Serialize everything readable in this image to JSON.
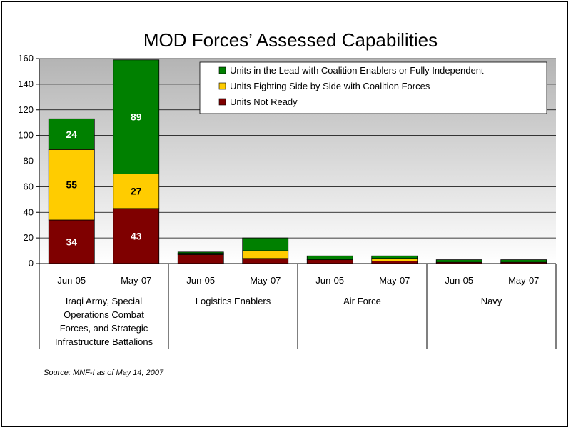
{
  "chart_data": {
    "type": "bar",
    "stacked": true,
    "title": "MOD Forces’ Assessed Capabilities",
    "ylim": [
      0,
      160
    ],
    "yticks": [
      "0",
      "20",
      "40",
      "60",
      "80",
      "100",
      "120",
      "140",
      "160"
    ],
    "ytick_values": [
      0,
      20,
      40,
      60,
      80,
      100,
      120,
      140,
      160
    ],
    "categories": [
      "Jun-05",
      "May-07",
      "Jun-05",
      "May-07",
      "Jun-05",
      "May-07",
      "Jun-05",
      "May-07"
    ],
    "groups": [
      {
        "lines": [
          "Iraqi Army, Special",
          "Operations Combat",
          "Forces, and Strategic",
          "Infrastructure Battalions"
        ]
      },
      {
        "lines": [
          "Logistics Enablers"
        ]
      },
      {
        "lines": [
          "Air Force"
        ]
      },
      {
        "lines": [
          "Navy"
        ]
      }
    ],
    "series": [
      {
        "name": "Units Not Ready",
        "color": "#7f0000",
        "label_color": "#ffffff",
        "values": [
          34,
          43,
          7,
          4,
          3,
          2,
          1,
          1
        ],
        "labels": [
          "34",
          "43",
          "",
          "",
          "",
          "",
          "",
          ""
        ]
      },
      {
        "name": "Units Fighting Side by Side with Coalition Forces",
        "color": "#ffcc00",
        "label_color": "#000000",
        "values": [
          55,
          27,
          1,
          6,
          0,
          2,
          0,
          0
        ],
        "labels": [
          "55",
          "27",
          "",
          "",
          "",
          "",
          "",
          ""
        ]
      },
      {
        "name": "Units in the Lead with Coalition Enablers or Fully Independent",
        "color": "#008000",
        "label_color": "#ffffff",
        "values": [
          24,
          89,
          1,
          10,
          3,
          2,
          2,
          2
        ],
        "labels": [
          "24",
          "89",
          "",
          "",
          "",
          "",
          "",
          ""
        ]
      }
    ],
    "legend": {
      "position": "top-right",
      "entries": [
        {
          "name": "Units in the Lead with Coalition Enablers or Fully Independent",
          "color": "#008000"
        },
        {
          "name": "Units Fighting Side by Side with Coalition Forces",
          "color": "#ffcc00"
        },
        {
          "name": "Units Not Ready",
          "color": "#7f0000"
        }
      ]
    },
    "grid": true
  },
  "source": "Source: MNF-I as of May 14, 2007"
}
